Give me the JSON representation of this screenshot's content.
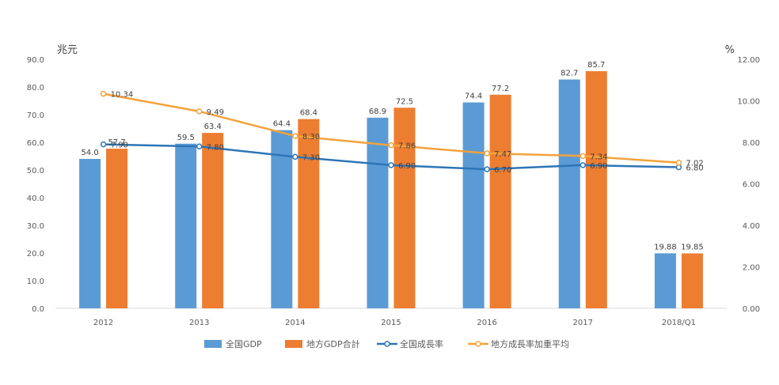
{
  "chart_data": {
    "type": "bar",
    "title": "",
    "categories": [
      "2012",
      "2013",
      "2014",
      "2015",
      "2016",
      "2017",
      "2018/Q1"
    ],
    "y_left": {
      "label": "兆元",
      "ylim": [
        0,
        90
      ],
      "ticks": [
        "0.0",
        "10.0",
        "20.0",
        "30.0",
        "40.0",
        "50.0",
        "60.0",
        "70.0",
        "80.0",
        "90.0"
      ]
    },
    "y_right": {
      "label": "%",
      "ylim": [
        0,
        12
      ],
      "ticks": [
        "0.00",
        "2.00",
        "4.00",
        "6.00",
        "8.00",
        "10.00",
        "12.00"
      ]
    },
    "grid": false,
    "legend_position": "bottom",
    "series": [
      {
        "name": "全国GDP",
        "kind": "bar",
        "axis": "left",
        "color": "#5B9BD5",
        "values": [
          54.0,
          59.5,
          64.4,
          68.9,
          74.4,
          82.7,
          19.88
        ],
        "labels": [
          "54.0",
          "59.5",
          "64.4",
          "68.9",
          "74.4",
          "82.7",
          "19.88"
        ]
      },
      {
        "name": "地方GDP合計",
        "kind": "bar",
        "axis": "left",
        "color": "#ED7D31",
        "values": [
          57.7,
          63.4,
          68.4,
          72.5,
          77.2,
          85.7,
          19.85
        ],
        "labels": [
          "57.7",
          "63.4",
          "68.4",
          "72.5",
          "77.2",
          "85.7",
          "19.85"
        ]
      },
      {
        "name": "全国成長率",
        "kind": "line",
        "axis": "right",
        "color": "#2E75B6",
        "values": [
          7.9,
          7.8,
          7.3,
          6.9,
          6.7,
          6.9,
          6.8
        ],
        "labels": [
          "7.90",
          "7.80",
          "7.30",
          "6.90",
          "6.70",
          "6.90",
          "6.80"
        ]
      },
      {
        "name": "地方成長率加重平均",
        "kind": "line",
        "axis": "right",
        "color": "#F4A23A",
        "values": [
          10.34,
          9.49,
          8.3,
          7.86,
          7.47,
          7.34,
          7.02
        ],
        "labels": [
          "10.34",
          "9.49",
          "8.30",
          "7.86",
          "7.47",
          "7.34",
          "7.02"
        ]
      }
    ]
  }
}
